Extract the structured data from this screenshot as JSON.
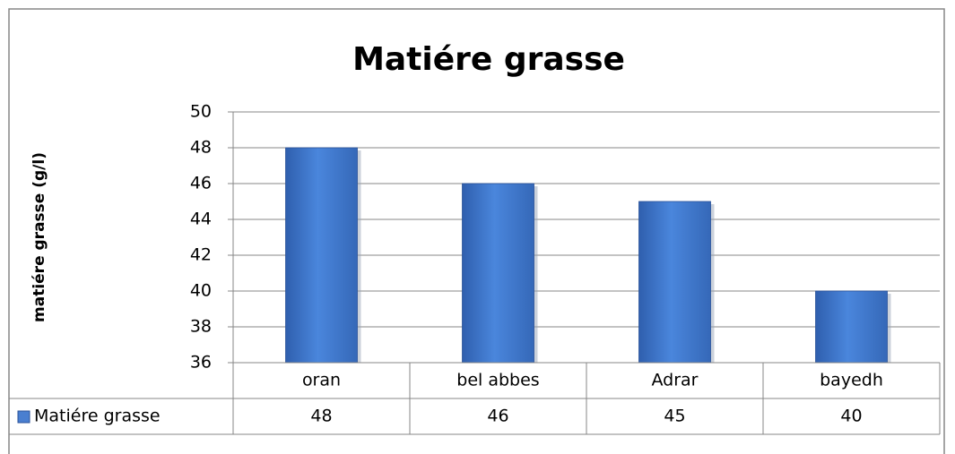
{
  "chart_data": {
    "type": "bar",
    "title": "Matiére grasse",
    "y_label": "matiére grasse (g/l)",
    "categories": [
      "oran",
      "bel abbes",
      "Adrar",
      "bayedh"
    ],
    "series": [
      {
        "name": "Matiére grasse",
        "color": "#4a7fd0",
        "values": [
          48,
          46,
          45,
          40
        ]
      }
    ],
    "ylim": [
      36,
      50
    ],
    "yticks": [
      36,
      38,
      40,
      42,
      44,
      46,
      48,
      50
    ],
    "grid": true,
    "data_table": true
  }
}
